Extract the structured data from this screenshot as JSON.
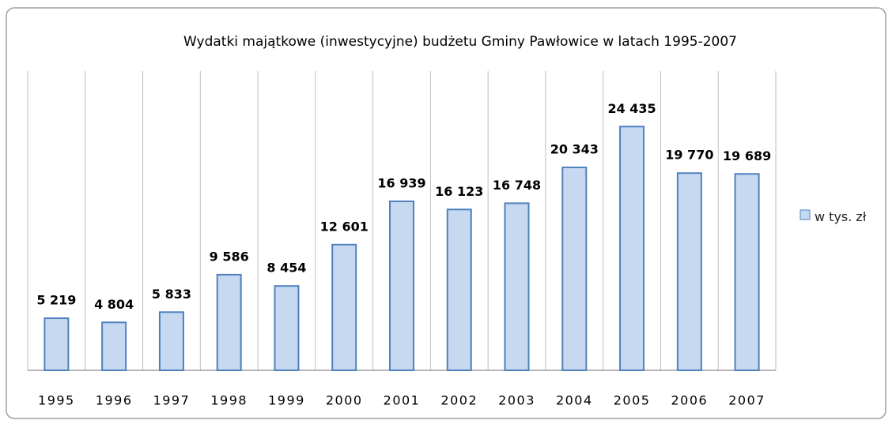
{
  "chart_data": {
    "type": "bar",
    "title": "Wydatki majątkowe (inwestycyjne) budżetu Gminy Pawłowice w latach 1995-2007",
    "categories": [
      "1995",
      "1996",
      "1997",
      "1998",
      "1999",
      "2000",
      "2001",
      "2002",
      "2003",
      "2004",
      "2005",
      "2006",
      "2007"
    ],
    "series": [
      {
        "name": "w tys. zł",
        "color": "#c6d9f1",
        "edge_color": "#4f81bd",
        "values": [
          5219,
          4804,
          5833,
          9586,
          8454,
          12601,
          16939,
          16123,
          16748,
          20343,
          24435,
          19770,
          19689
        ],
        "value_labels": [
          "5 219",
          "4 804",
          "5 833",
          "9 586",
          "8 454",
          "12 601",
          "16 939",
          "16 123",
          "16 748",
          "20 343",
          "24 435",
          "19 770",
          "19 689"
        ]
      }
    ],
    "ylim": [
      0,
      30000
    ],
    "grid": true,
    "legend": "right"
  }
}
